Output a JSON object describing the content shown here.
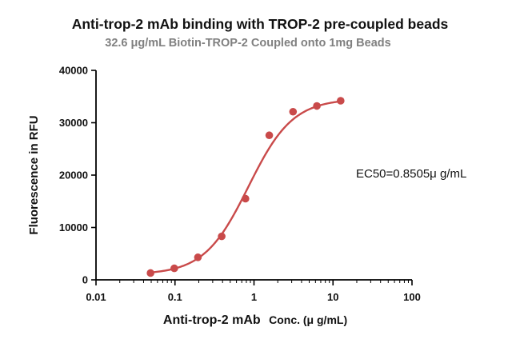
{
  "chart_data": {
    "type": "scatter",
    "title": "Anti-trop-2 mAb binding with TROP-2 pre-coupled beads",
    "subtitle": "32.6 μg/mL Biotin-TROP-2 Coupled onto 1mg Beads",
    "xlabel_main": "Anti-trop-2 mAb",
    "xlabel_unit": "Conc. (μ g/mL)",
    "ylabel": "Fluorescence in RFU",
    "xscale": "log",
    "xlim": [
      0.01,
      100
    ],
    "ylim": [
      0,
      40000
    ],
    "x_ticks": [
      0.01,
      0.1,
      1,
      10,
      100
    ],
    "x_tick_labels": [
      "0.01",
      "0.1",
      "1",
      "10",
      "100"
    ],
    "y_ticks": [
      0,
      10000,
      20000,
      30000,
      40000
    ],
    "y_tick_labels": [
      "0",
      "10000",
      "20000",
      "30000",
      "40000"
    ],
    "grid": false,
    "series": [
      {
        "x": [
          0.049,
          0.098,
          0.195,
          0.39,
          0.78,
          1.56,
          3.12,
          6.25,
          12.5
        ],
        "y": [
          1300,
          2200,
          4300,
          8300,
          15500,
          27600,
          32100,
          33200,
          34200
        ],
        "color": "#c94a4a",
        "fit": "4PL sigmoidal"
      }
    ],
    "fit_params": {
      "bottom": 1000,
      "top": 34600,
      "ec50": 0.8505,
      "hill": 1.55
    },
    "annotation": "EC50=0.8505μ g/mL"
  }
}
